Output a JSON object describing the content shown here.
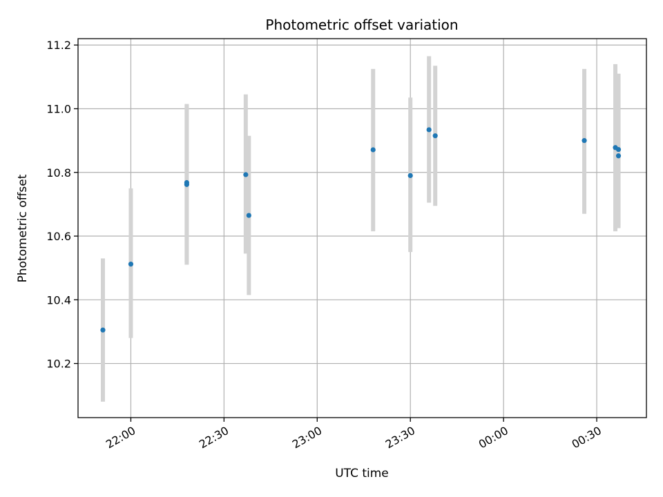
{
  "chart_data": {
    "type": "scatter",
    "title": "Photometric offset variation",
    "xlabel": "UTC time",
    "ylabel": "Photometric offset",
    "x_ticks": [
      "22:00",
      "22:30",
      "23:00",
      "23:30",
      "00:00",
      "00:30"
    ],
    "y_ticks": [
      "10.2",
      "10.4",
      "10.6",
      "10.8",
      "11.0",
      "11.2"
    ],
    "xlim": [
      "21:43",
      "00:46"
    ],
    "ylim": [
      10.03,
      11.22
    ],
    "grid": true,
    "marker_color": "#1f77b4",
    "errorbar_color": "#d3d3d3",
    "points": [
      {
        "t": "21:51",
        "y": 10.305,
        "ylow": 10.08,
        "yhigh": 10.53
      },
      {
        "t": "22:00",
        "y": 10.512,
        "ylow": 10.28,
        "yhigh": 10.75
      },
      {
        "t": "22:18",
        "y": 10.768,
        "ylow": 10.52,
        "yhigh": 11.015
      },
      {
        "t": "22:18",
        "y": 10.762,
        "ylow": 10.51,
        "yhigh": 11.01
      },
      {
        "t": "22:37",
        "y": 10.793,
        "ylow": 10.545,
        "yhigh": 11.045
      },
      {
        "t": "22:38",
        "y": 10.665,
        "ylow": 10.415,
        "yhigh": 10.915
      },
      {
        "t": "23:18",
        "y": 10.871,
        "ylow": 10.615,
        "yhigh": 11.125
      },
      {
        "t": "23:30",
        "y": 10.79,
        "ylow": 10.55,
        "yhigh": 11.035
      },
      {
        "t": "23:36",
        "y": 10.934,
        "ylow": 10.705,
        "yhigh": 11.165
      },
      {
        "t": "23:38",
        "y": 10.915,
        "ylow": 10.695,
        "yhigh": 11.135
      },
      {
        "t": "00:26",
        "y": 10.9,
        "ylow": 10.67,
        "yhigh": 11.125
      },
      {
        "t": "00:36",
        "y": 10.878,
        "ylow": 10.615,
        "yhigh": 11.14
      },
      {
        "t": "00:37",
        "y": 10.872,
        "ylow": 10.635,
        "yhigh": 11.11
      },
      {
        "t": "00:37",
        "y": 10.852,
        "ylow": 10.625,
        "yhigh": 11.09
      }
    ]
  }
}
